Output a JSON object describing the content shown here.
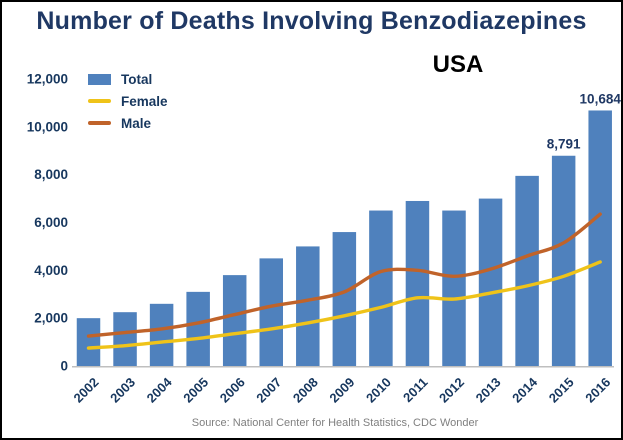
{
  "region_label": {
    "text": "USA",
    "color": "#000000"
  },
  "source": {
    "text": "Source: National Center for Health Statistics, CDC Wonder",
    "color": "#7F7F7F"
  },
  "axis": {
    "label_color": "#17375E",
    "baseline_color": "#BFBFBF"
  },
  "chart_data": {
    "type": "bar",
    "title": "Number of Deaths Involving Benzodiazepines",
    "title_color": "#1F3864",
    "categories": [
      "2002",
      "2003",
      "2004",
      "2005",
      "2006",
      "2007",
      "2008",
      "2009",
      "2010",
      "2011",
      "2012",
      "2013",
      "2014",
      "2015",
      "2016"
    ],
    "series": [
      {
        "name": "Total",
        "kind": "bar",
        "color": "#4F81BD",
        "values": [
          2000,
          2250,
          2600,
          3100,
          3800,
          4500,
          5000,
          5600,
          6500,
          6900,
          6500,
          7000,
          7950,
          8791,
          10684
        ]
      },
      {
        "name": "Female",
        "kind": "line",
        "color": "#EFC319",
        "values": [
          750,
          850,
          1000,
          1150,
          1350,
          1550,
          1800,
          2100,
          2450,
          2850,
          2800,
          3050,
          3350,
          3750,
          4350
        ]
      },
      {
        "name": "Male",
        "kind": "line",
        "color": "#C0632A",
        "values": [
          1250,
          1400,
          1550,
          1800,
          2150,
          2500,
          2750,
          3100,
          3950,
          4000,
          3750,
          4050,
          4600,
          5150,
          6350
        ]
      }
    ],
    "xlabel": "",
    "ylabel": "",
    "ylim": [
      0,
      12000
    ],
    "yticks": [
      0,
      2000,
      4000,
      6000,
      8000,
      10000,
      12000
    ],
    "grid": false,
    "legend_position": "top-left",
    "data_labels": [
      {
        "category": "2015",
        "text": "8,791"
      },
      {
        "category": "2016",
        "text": "10,684"
      }
    ]
  }
}
